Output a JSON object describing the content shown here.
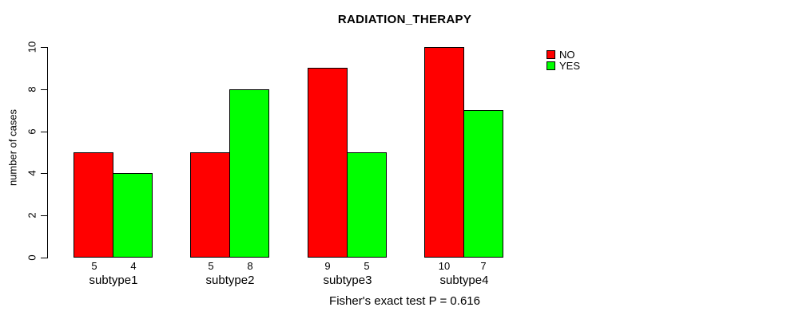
{
  "chart_data": {
    "type": "bar",
    "title": "RADIATION_THERAPY",
    "ylabel": "number of cases",
    "xlabel": "",
    "categories": [
      "subtype1",
      "subtype2",
      "subtype3",
      "subtype4"
    ],
    "series": [
      {
        "name": "NO",
        "color": "#FF0000",
        "values": [
          5,
          5,
          9,
          10
        ]
      },
      {
        "name": "YES",
        "color": "#00FF00",
        "values": [
          4,
          8,
          5,
          7
        ]
      }
    ],
    "bar_value_labels_shown": true,
    "yticks": [
      0,
      2,
      4,
      6,
      8,
      10
    ],
    "ylim": [
      0,
      10
    ],
    "grid": false,
    "legend_position": "top-right",
    "footnote": "Fisher's exact test P = 0.616",
    "background_color": "#FFFFFF",
    "axis_color": "#000000"
  }
}
